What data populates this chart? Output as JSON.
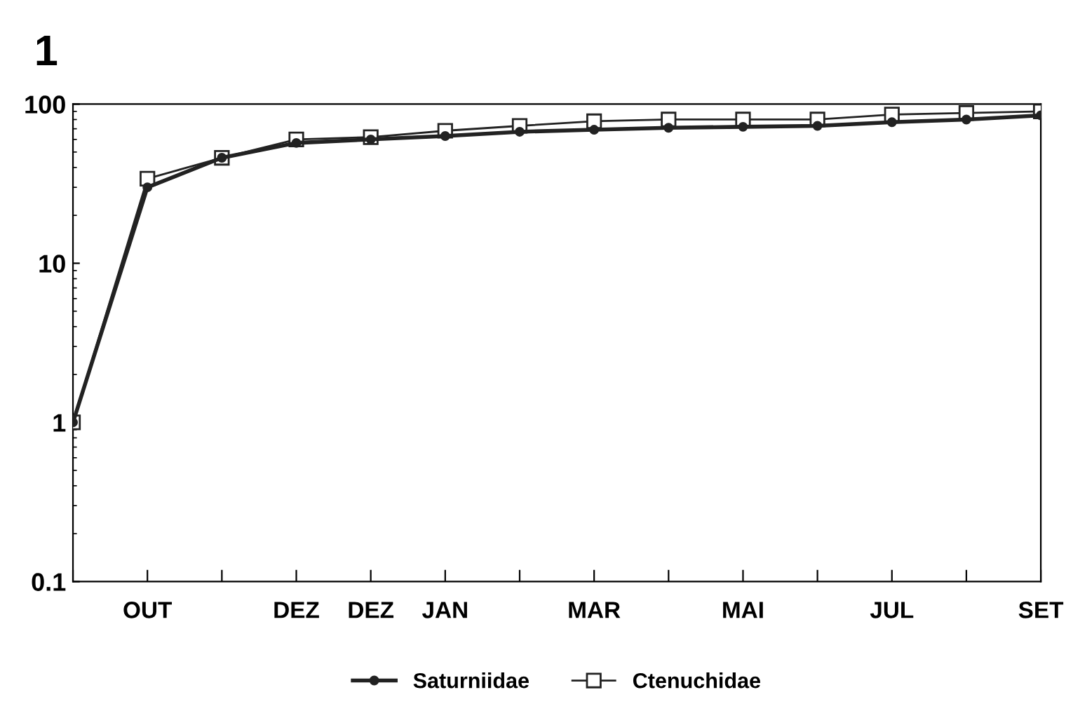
{
  "chart_data": {
    "type": "line",
    "title": "1",
    "log": "y",
    "categories": [
      null,
      "OUT",
      null,
      "DEZ",
      "DEZ",
      "JAN",
      null,
      "MAR",
      null,
      "MAI",
      null,
      "JUL",
      null,
      "SET"
    ],
    "series": [
      {
        "name": "Saturniidae",
        "color": "#222222",
        "marker": "circle",
        "values": [
          1,
          30,
          46,
          57,
          60,
          63,
          67,
          69,
          71,
          72,
          73,
          77,
          80,
          85
        ]
      },
      {
        "name": "Ctenuchidae",
        "color": "#222222",
        "marker": "square",
        "values": [
          1,
          34,
          46,
          60,
          62,
          68,
          73,
          78,
          80,
          80,
          80,
          86,
          88,
          90
        ]
      }
    ],
    "ylim": [
      0.1,
      100
    ],
    "yticks": [
      0.1,
      1,
      10,
      100
    ],
    "grid": false,
    "legend": "bottom"
  }
}
